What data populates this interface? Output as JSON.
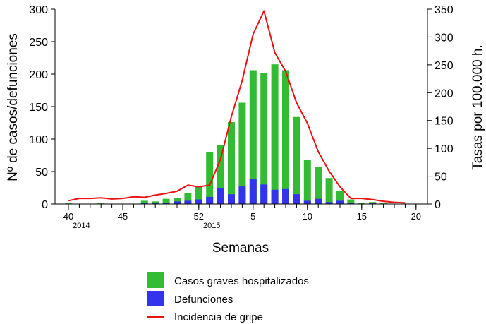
{
  "chart_data": {
    "type": "bar",
    "title": "",
    "xlabel": "Semanas",
    "ylabel_left": "Nº de casos/defunciones",
    "ylabel_right": "Tasas por 100.000 h.",
    "ylim_left": [
      0,
      300
    ],
    "ylim_right": [
      0,
      350
    ],
    "yticks_left": [
      "0",
      "50",
      "100",
      "150",
      "200",
      "250",
      "300"
    ],
    "yticks_right": [
      "0",
      "50",
      "100",
      "150",
      "200",
      "250",
      "300",
      "350"
    ],
    "xticks": [
      {
        "label": "40",
        "index": 0
      },
      {
        "label": "45",
        "index": 5
      },
      {
        "label": "52",
        "index": 12
      },
      {
        "label": "5",
        "index": 17
      },
      {
        "label": "10",
        "index": 22
      },
      {
        "label": "15",
        "index": 27
      },
      {
        "label": "20",
        "index": 32
      }
    ],
    "year_labels": [
      {
        "label": "2014",
        "index": 1
      },
      {
        "label": "2015",
        "index": 13
      }
    ],
    "weeks": [
      40,
      41,
      42,
      43,
      44,
      45,
      46,
      47,
      48,
      49,
      50,
      51,
      52,
      1,
      2,
      3,
      4,
      5,
      6,
      7,
      8,
      9,
      10,
      11,
      12,
      13,
      14,
      15,
      16,
      17,
      18,
      19,
      20
    ],
    "series": [
      {
        "name": "Casos graves hospitalizados",
        "color": "#33bb33",
        "kind": "bar",
        "axis": "left",
        "values": [
          1,
          0,
          0,
          1,
          0,
          0,
          0,
          5,
          4,
          8,
          9,
          17,
          28,
          80,
          91,
          126,
          156,
          206,
          202,
          215,
          206,
          134,
          68,
          57,
          40,
          20,
          7,
          2,
          3,
          1,
          0,
          0,
          0
        ]
      },
      {
        "name": "Defunciones",
        "color": "#3333ee",
        "kind": "bar",
        "axis": "left",
        "values": [
          0,
          0,
          0,
          0,
          0,
          0,
          0,
          1,
          1,
          2,
          4,
          5,
          7,
          11,
          25,
          15,
          27,
          38,
          30,
          22,
          23,
          15,
          5,
          8,
          3,
          5,
          1,
          0,
          1,
          0,
          0,
          0,
          0
        ]
      },
      {
        "name": "Incidencia de gripe",
        "color": "#ee1111",
        "kind": "line",
        "axis": "right",
        "values": [
          6,
          10,
          10,
          11,
          9,
          10,
          13,
          12,
          16,
          19,
          23,
          34,
          31,
          34,
          80,
          157,
          222,
          305,
          347,
          272,
          238,
          182,
          145,
          94,
          59,
          31,
          10,
          10,
          8,
          5,
          3,
          2,
          null
        ]
      }
    ],
    "legend": [
      "Casos graves hospitalizados",
      "Defunciones",
      "Incidencia de gripe"
    ],
    "legend_position": "bottom"
  }
}
